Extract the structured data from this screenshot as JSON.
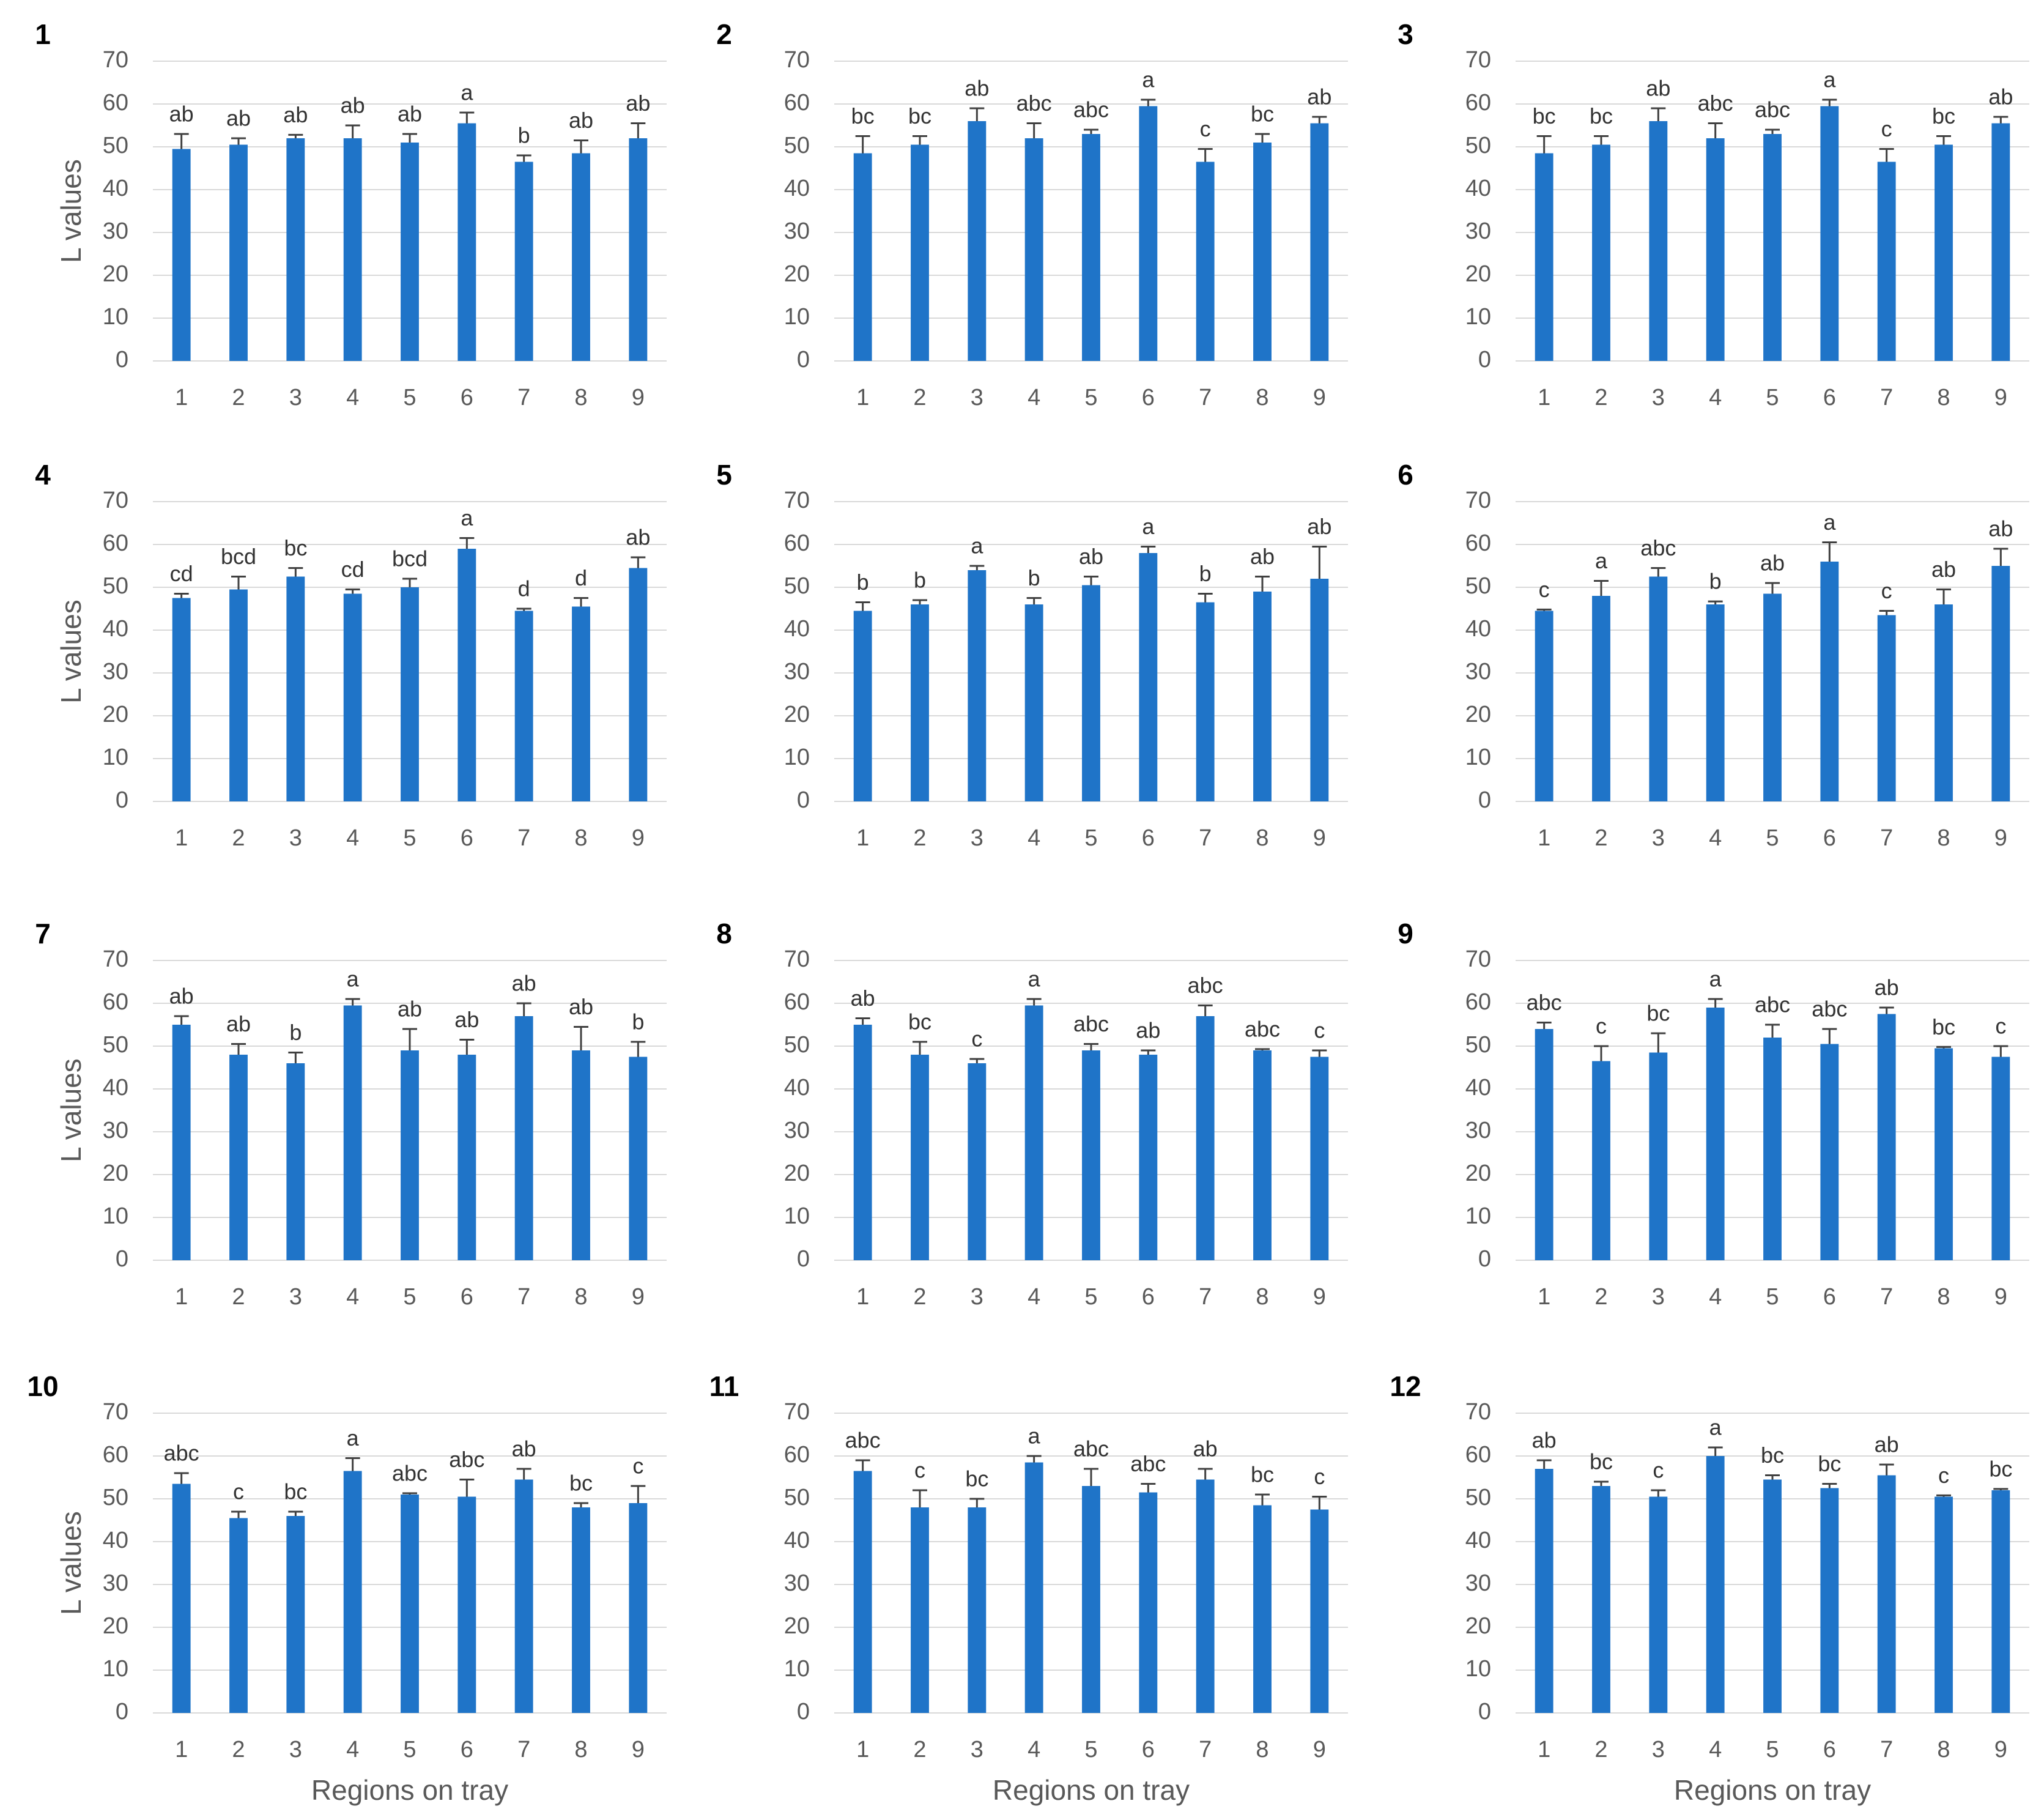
{
  "chart_data": [
    {
      "type": "bar",
      "title": "1",
      "y_label": "L values",
      "categories": [
        "1",
        "2",
        "3",
        "4",
        "5",
        "6",
        "7",
        "8",
        "9"
      ],
      "values": [
        49.5,
        50.5,
        52,
        52,
        51,
        55.5,
        46.5,
        48.5,
        52
      ],
      "errors": [
        3.5,
        1.5,
        0.8,
        3,
        2,
        2.5,
        1.5,
        3,
        3.5
      ],
      "annotations": [
        "ab",
        "ab",
        "ab",
        "ab",
        "ab",
        "a",
        "b",
        "ab",
        "ab"
      ],
      "color": "#1f74c8",
      "ylim": [
        0,
        70
      ],
      "yticks": [
        0,
        10,
        20,
        30,
        40,
        50,
        60,
        70
      ],
      "grid": true
    },
    {
      "type": "bar",
      "title": "2",
      "categories": [
        "1",
        "2",
        "3",
        "4",
        "5",
        "6",
        "7",
        "8",
        "9"
      ],
      "values": [
        48.5,
        50.5,
        56,
        52,
        53,
        59.5,
        46.5,
        51,
        55.5
      ],
      "errors": [
        4,
        2,
        3,
        3.5,
        1,
        1.5,
        3,
        2,
        1.5
      ],
      "annotations": [
        "bc",
        "bc",
        "ab",
        "abc",
        "abc",
        "a",
        "c",
        "bc",
        "ab"
      ],
      "color": "#1f74c8",
      "ylim": [
        0,
        70
      ],
      "yticks": [
        0,
        10,
        20,
        30,
        40,
        50,
        60,
        70
      ],
      "grid": true
    },
    {
      "type": "bar",
      "title": "3",
      "categories": [
        "1",
        "2",
        "3",
        "4",
        "5",
        "6",
        "7",
        "8",
        "9"
      ],
      "values": [
        48.5,
        50.5,
        56,
        52,
        53,
        59.5,
        46.5,
        50.5,
        55.5
      ],
      "errors": [
        4,
        2,
        3,
        3.5,
        1,
        1.5,
        3,
        2,
        1.5
      ],
      "annotations": [
        "bc",
        "bc",
        "ab",
        "abc",
        "abc",
        "a",
        "c",
        "bc",
        "ab"
      ],
      "color": "#1f74c8",
      "ylim": [
        0,
        70
      ],
      "yticks": [
        0,
        10,
        20,
        30,
        40,
        50,
        60,
        70
      ],
      "grid": true
    },
    {
      "type": "bar",
      "title": "4",
      "y_label": "L values",
      "categories": [
        "1",
        "2",
        "3",
        "4",
        "5",
        "6",
        "7",
        "8",
        "9"
      ],
      "values": [
        47.5,
        49.5,
        52.5,
        48.5,
        50,
        59,
        44.5,
        45.5,
        54.5
      ],
      "errors": [
        1,
        3,
        2,
        1,
        2,
        2.5,
        0.5,
        2,
        2.5
      ],
      "annotations": [
        "cd",
        "bcd",
        "bc",
        "cd",
        "bcd",
        "a",
        "d",
        "d",
        "ab"
      ],
      "color": "#1f74c8",
      "ylim": [
        0,
        70
      ],
      "yticks": [
        0,
        10,
        20,
        30,
        40,
        50,
        60,
        70
      ],
      "grid": true
    },
    {
      "type": "bar",
      "title": "5",
      "categories": [
        "1",
        "2",
        "3",
        "4",
        "5",
        "6",
        "7",
        "8",
        "9"
      ],
      "values": [
        44.5,
        46,
        54,
        46,
        50.5,
        58,
        46.5,
        49,
        52
      ],
      "errors": [
        2,
        1,
        1,
        1.5,
        2,
        1.5,
        2,
        3.5,
        7.5
      ],
      "annotations": [
        "b",
        "b",
        "a",
        "b",
        "ab",
        "a",
        "b",
        "ab",
        "ab"
      ],
      "color": "#1f74c8",
      "ylim": [
        0,
        70
      ],
      "yticks": [
        0,
        10,
        20,
        30,
        40,
        50,
        60,
        70
      ],
      "grid": true
    },
    {
      "type": "bar",
      "title": "6",
      "categories": [
        "1",
        "2",
        "3",
        "4",
        "5",
        "6",
        "7",
        "8",
        "9"
      ],
      "values": [
        44.5,
        48,
        52.5,
        46,
        48.5,
        56,
        43.5,
        46,
        55
      ],
      "errors": [
        0.3,
        3.5,
        2,
        0.7,
        2.5,
        4.5,
        1,
        3.5,
        4
      ],
      "annotations": [
        "c",
        "a",
        "abc",
        "b",
        "ab",
        "a",
        "c",
        "ab",
        "ab"
      ],
      "color": "#1f74c8",
      "ylim": [
        0,
        70
      ],
      "yticks": [
        0,
        10,
        20,
        30,
        40,
        50,
        60,
        70
      ],
      "grid": true
    },
    {
      "type": "bar",
      "title": "7",
      "y_label": "L values",
      "categories": [
        "1",
        "2",
        "3",
        "4",
        "5",
        "6",
        "7",
        "8",
        "9"
      ],
      "values": [
        55,
        48,
        46,
        59.5,
        49,
        48,
        57,
        49,
        47.5
      ],
      "errors": [
        2,
        2.5,
        2.5,
        1.5,
        5,
        3.5,
        3,
        5.5,
        3.5
      ],
      "annotations": [
        "ab",
        "ab",
        "b",
        "a",
        "ab",
        "ab",
        "ab",
        "ab",
        "b"
      ],
      "color": "#1f74c8",
      "ylim": [
        0,
        70
      ],
      "yticks": [
        0,
        10,
        20,
        30,
        40,
        50,
        60,
        70
      ],
      "grid": true
    },
    {
      "type": "bar",
      "title": "8",
      "categories": [
        "1",
        "2",
        "3",
        "4",
        "5",
        "6",
        "7",
        "8",
        "9"
      ],
      "values": [
        55,
        48,
        46,
        59.5,
        49,
        48,
        57,
        49,
        47.5
      ],
      "errors": [
        1.5,
        3,
        1,
        1.5,
        1.5,
        1,
        2.5,
        0.3,
        1.5
      ],
      "annotations": [
        "ab",
        "bc",
        "c",
        "a",
        "abc",
        "ab",
        "abc",
        "abc",
        "c"
      ],
      "color": "#1f74c8",
      "ylim": [
        0,
        70
      ],
      "yticks": [
        0,
        10,
        20,
        30,
        40,
        50,
        60,
        70
      ],
      "grid": true
    },
    {
      "type": "bar",
      "title": "9",
      "categories": [
        "1",
        "2",
        "3",
        "4",
        "5",
        "6",
        "7",
        "8",
        "9"
      ],
      "values": [
        54,
        46.5,
        48.5,
        59,
        52,
        50.5,
        57.5,
        49.5,
        47.5
      ],
      "errors": [
        1.5,
        3.5,
        4.5,
        2,
        3,
        3.5,
        1.5,
        0.3,
        2.5
      ],
      "annotations": [
        "abc",
        "c",
        "bc",
        "a",
        "abc",
        "abc",
        "ab",
        "bc",
        "c"
      ],
      "color": "#1f74c8",
      "ylim": [
        0,
        70
      ],
      "yticks": [
        0,
        10,
        20,
        30,
        40,
        50,
        60,
        70
      ],
      "grid": true
    },
    {
      "type": "bar",
      "title": "10",
      "y_label": "L values",
      "x_label": "Regions on tray",
      "categories": [
        "1",
        "2",
        "3",
        "4",
        "5",
        "6",
        "7",
        "8",
        "9"
      ],
      "values": [
        53.5,
        45.5,
        46,
        56.5,
        51,
        50.5,
        54.5,
        48,
        49
      ],
      "errors": [
        2.5,
        1.5,
        1,
        3,
        0.3,
        4,
        2.5,
        1,
        4
      ],
      "annotations": [
        "abc",
        "c",
        "bc",
        "a",
        "abc",
        "abc",
        "ab",
        "bc",
        "c"
      ],
      "color": "#1f74c8",
      "ylim": [
        0,
        70
      ],
      "yticks": [
        0,
        10,
        20,
        30,
        40,
        50,
        60,
        70
      ],
      "grid": true
    },
    {
      "type": "bar",
      "title": "11",
      "x_label": "Regions on tray",
      "categories": [
        "1",
        "2",
        "3",
        "4",
        "5",
        "6",
        "7",
        "8",
        "9"
      ],
      "values": [
        56.5,
        48,
        48,
        58.5,
        53,
        51.5,
        54.5,
        48.5,
        47.5
      ],
      "errors": [
        2.5,
        4,
        2,
        1.5,
        4,
        2,
        2.5,
        2.5,
        3
      ],
      "annotations": [
        "abc",
        "c",
        "bc",
        "a",
        "abc",
        "abc",
        "ab",
        "bc",
        "c"
      ],
      "color": "#1f74c8",
      "ylim": [
        0,
        70
      ],
      "yticks": [
        0,
        10,
        20,
        30,
        40,
        50,
        60,
        70
      ],
      "grid": true
    },
    {
      "type": "bar",
      "title": "12",
      "x_label": "Regions on tray",
      "categories": [
        "1",
        "2",
        "3",
        "4",
        "5",
        "6",
        "7",
        "8",
        "9"
      ],
      "values": [
        57,
        53,
        50.5,
        60,
        54.5,
        52.5,
        55.5,
        50.5,
        52
      ],
      "errors": [
        2,
        1,
        1.5,
        2,
        1,
        1,
        2.5,
        0.3,
        0.3
      ],
      "annotations": [
        "ab",
        "bc",
        "c",
        "a",
        "bc",
        "bc",
        "ab",
        "c",
        "bc"
      ],
      "color": "#1f74c8",
      "ylim": [
        0,
        70
      ],
      "yticks": [
        0,
        10,
        20,
        30,
        40,
        50,
        60,
        70
      ],
      "grid": true
    }
  ]
}
